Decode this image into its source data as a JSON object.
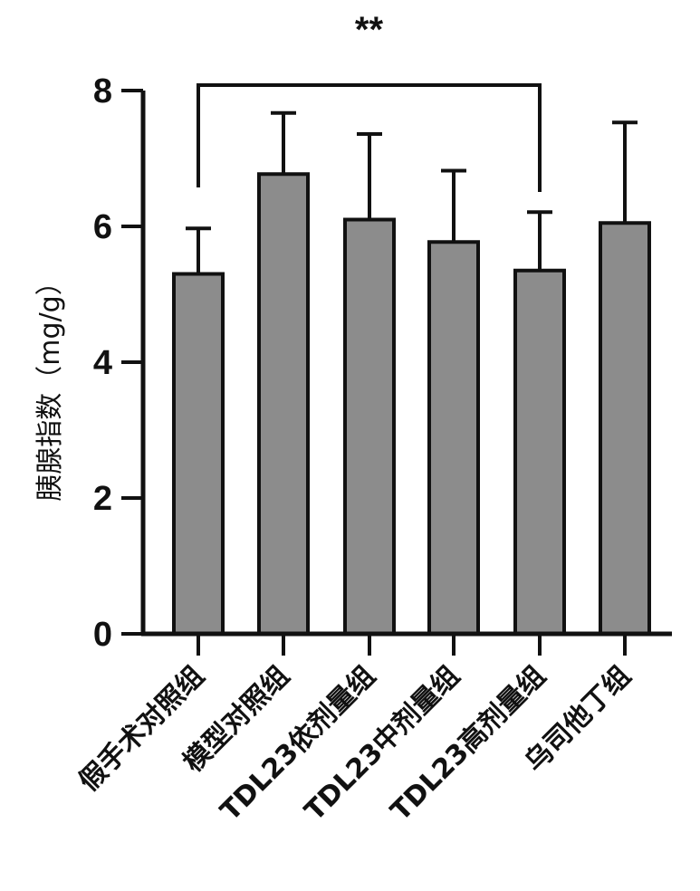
{
  "chart_data": {
    "type": "bar",
    "categories": [
      "假手术对照组",
      "模型对照组",
      "TDL23依剂量组",
      "TDL23中剂量组",
      "TDL23高剂量组",
      "乌司他丁组"
    ],
    "values": [
      5.3,
      6.77,
      6.1,
      5.77,
      5.35,
      6.05
    ],
    "error_upper": [
      0.67,
      0.9,
      1.26,
      1.05,
      0.86,
      1.48
    ],
    "xlabel": "",
    "ylabel": "胰腺指数（mg/g）",
    "ylim": [
      0,
      8
    ],
    "yticks": [
      "0",
      "2",
      "4",
      "6",
      "8"
    ],
    "bar_color": "#8c8c8c",
    "grid": false,
    "significance": {
      "label": "**",
      "from_category": 0,
      "to_category": 4
    }
  }
}
